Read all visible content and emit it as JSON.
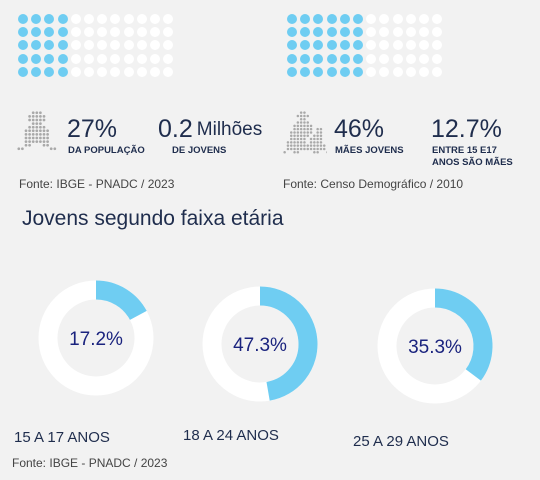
{
  "colors": {
    "accent": "#6fcdf2",
    "ring_bg": "#ffffff",
    "dot_off": "#ffffff",
    "icon_gray": "#a9a9a9",
    "text_dark": "#1f2d4d",
    "pct_text": "#1a237e"
  },
  "top": {
    "left": {
      "dot_grid": {
        "rows": 5,
        "cols": 12,
        "filled_cols": 4
      },
      "stat1": {
        "value": "27%",
        "caption": "DA POPULAÇÃO"
      },
      "stat2": {
        "value": "0.2",
        "unit": "Milhões",
        "caption": "DE JOVENS"
      },
      "source": "Fonte: IBGE - PNADC / 2023",
      "icon": "person-icon"
    },
    "right": {
      "dot_grid": {
        "rows": 5,
        "cols": 12,
        "filled_cols": 6
      },
      "stat1": {
        "value": "46%",
        "caption": "MÃES JOVENS"
      },
      "stat2": {
        "value": "12.7%",
        "caption_line1": "ENTRE 15 E17",
        "caption_line2": "ANOS SÃO MÃES"
      },
      "source": "Fonte: Censo Demográfico / 2010",
      "icon": "mother-child-icon"
    }
  },
  "section_title": "Jovens segundo faixa etária",
  "bottom_source": "Fonte: IBGE - PNADC / 2023",
  "chart_data": {
    "type": "pie",
    "title": "Jovens segundo faixa etária",
    "categories": [
      "15 A 17 ANOS",
      "18 A 24 ANOS",
      "25 A 29 ANOS"
    ],
    "values": [
      17.2,
      47.3,
      35.3
    ],
    "labels": [
      "17.2%",
      "47.3%",
      "35.3%"
    ]
  }
}
